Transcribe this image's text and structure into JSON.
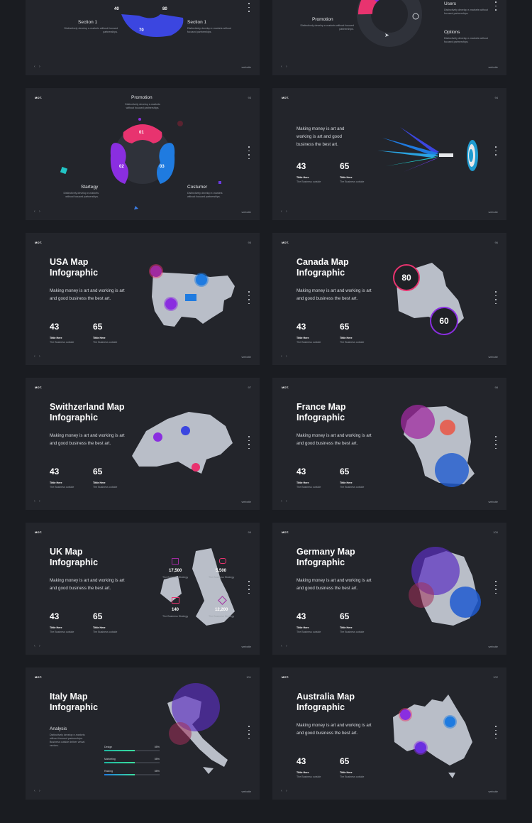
{
  "common": {
    "brand": "MOT.",
    "website": "website",
    "nav_arrows": "‹ ›",
    "make_money": "Making money is art and working is art and good business the best art.",
    "stat1_value": "43",
    "stat2_value": "65",
    "stat_label": "Tittle Here",
    "stat_sub": "The Business outside",
    "desc": "Distinctively develop e-markets without focused partnerships."
  },
  "slides": [
    {
      "id": "s1",
      "section_left": "Section 1",
      "section_right": "Section 1",
      "pct_a": "40",
      "pct_b": "80",
      "pct_c": "70"
    },
    {
      "id": "s2",
      "promotion": "Promotion",
      "users": "Users",
      "options": "Options"
    },
    {
      "id": "s3",
      "page": "93",
      "promotion": "Promotion",
      "strategy": "Startegy",
      "customer": "Costumer",
      "n1": "01",
      "n2": "02",
      "n3": "03"
    },
    {
      "id": "s4",
      "page": "94"
    },
    {
      "id": "s5",
      "page": "95",
      "title": "USA Map Infographic"
    },
    {
      "id": "s6",
      "page": "96",
      "title": "Canada Map Infographic",
      "val_a": "80",
      "val_b": "60"
    },
    {
      "id": "s7",
      "page": "97",
      "title": "Swithzerland Map Infographic"
    },
    {
      "id": "s8",
      "page": "98",
      "title": "France Map Infographic"
    },
    {
      "id": "s9",
      "page": "99",
      "title": "UK Map Infographic",
      "n_a": "17,500",
      "n_b": "5,500",
      "n_c": "140",
      "n_d": "12,200",
      "cap_a": "The Business Strategy",
      "cap_b": "The Business Strategy",
      "cap_c": "The Business Strategy",
      "cap_d": "The Business Strategy"
    },
    {
      "id": "s10",
      "page": "100",
      "title": "Germany Map Infographic"
    },
    {
      "id": "s11",
      "page": "101",
      "title": "Italy Map Infographic",
      "analysis": "Analysis",
      "analysis_desc": "Distinctively develop e-markets without focused partnerships. Business outside deliver virtual vectors.",
      "bars": [
        {
          "label": "Design",
          "pct": "55%",
          "value": 0.55
        },
        {
          "label": "Marketing",
          "pct": "55%",
          "value": 0.55
        },
        {
          "label": "Raising",
          "pct": "55%",
          "value": 0.55
        }
      ]
    },
    {
      "id": "s12",
      "page": "102",
      "title": "Australia Map Infographic"
    }
  ],
  "colors": {
    "bg": "#1a1c21",
    "slide": "#23252b",
    "map": "#b9bec8",
    "pink": "#e8336f",
    "purple": "#7b2fe0",
    "blue": "#1f7be0",
    "teal": "#22c5c5"
  }
}
